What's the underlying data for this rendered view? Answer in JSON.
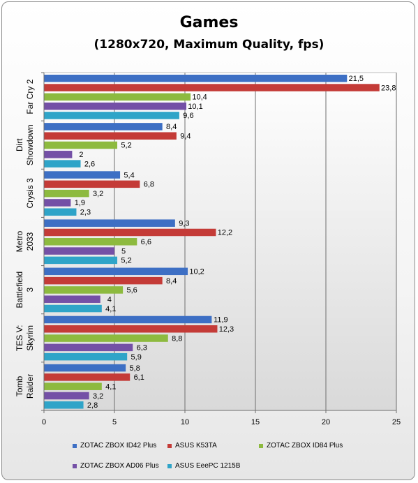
{
  "chart_data": {
    "type": "bar",
    "orientation": "horizontal",
    "title": "Games",
    "subtitle": "(1280x720, Maximum Quality, fps)",
    "categories": [
      [
        "Far Cry 2"
      ],
      [
        "Dirt",
        "Showdown"
      ],
      [
        "Crysis 3"
      ],
      [
        "Metro",
        "2033"
      ],
      [
        "Battlefield",
        "3"
      ],
      [
        "TES V:",
        "Skyrim"
      ],
      [
        "Tomb",
        "Raider"
      ]
    ],
    "series": [
      {
        "name": "ZOTAC ZBOX ID42 Plus",
        "color": "#3d6fc4",
        "values": [
          21.5,
          8.4,
          5.4,
          9.3,
          10.2,
          11.9,
          5.8
        ],
        "labels": [
          "21,5",
          "8,4",
          "5,4",
          "9,3",
          "10,2",
          "11,9",
          "5,8"
        ]
      },
      {
        "name": "ASUS K53TA",
        "color": "#c43b37",
        "values": [
          23.8,
          9.4,
          6.8,
          12.2,
          8.4,
          12.3,
          6.1
        ],
        "labels": [
          "23,8",
          "9,4",
          "6,8",
          "12,2",
          "8,4",
          "12,3",
          "6,1"
        ]
      },
      {
        "name": "ZOTAC ZBOX ID84 Plus",
        "color": "#8dba3f",
        "values": [
          10.4,
          5.2,
          3.2,
          6.6,
          5.6,
          8.8,
          4.1
        ],
        "labels": [
          "10,4",
          "5,2",
          "3,2",
          "6,6",
          "5,6",
          "8,8",
          "4,1"
        ]
      },
      {
        "name": "ZOTAC ZBOX AD06 Plus",
        "color": "#7450a6",
        "values": [
          10.1,
          2,
          1.9,
          5,
          4,
          6.3,
          3.2
        ],
        "labels": [
          "10,1",
          "2",
          "1,9",
          "5",
          "4",
          "6,3",
          "3,2"
        ]
      },
      {
        "name": "ASUS EeePC 1215B",
        "color": "#2fa4c8",
        "values": [
          9.6,
          2.6,
          2.3,
          5.2,
          4.1,
          5.9,
          2.8
        ],
        "labels": [
          "9,6",
          "2,6",
          "2,3",
          "5,2",
          "4,1",
          "5,9",
          "2,8"
        ]
      }
    ],
    "xlim": [
      0,
      25
    ],
    "xticks": [
      0,
      5,
      10,
      15,
      20,
      25
    ],
    "grid": true,
    "legend_position": "bottom"
  }
}
